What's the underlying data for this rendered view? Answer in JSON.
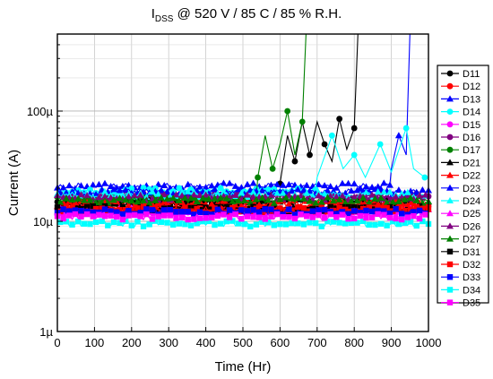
{
  "chart_data": {
    "type": "line",
    "title": {
      "main": "I",
      "sub": "DSS",
      "rest": " @ 520 V / 85 C / 85 % R.H."
    },
    "xlabel": "Time (Hr)",
    "ylabel": "Current (A)",
    "xlim": [
      0,
      1000
    ],
    "ylim": [
      1e-06,
      0.0005
    ],
    "yscale": "log",
    "grid": true,
    "legend_position": "right",
    "x_ticks": [
      0,
      100,
      200,
      300,
      400,
      500,
      600,
      700,
      800,
      900,
      1000
    ],
    "y_ticks": [
      {
        "value": 1e-06,
        "label": "1µ"
      },
      {
        "value": 1e-05,
        "label": "10µ"
      },
      {
        "value": 0.0001,
        "label": "100µ"
      }
    ],
    "series": [
      {
        "name": "D11",
        "color": "#000000",
        "marker": "circle",
        "base": 1.5e-05,
        "excursion": [
          [
            560,
            1.6e-05
          ],
          [
            600,
            2.2e-05
          ],
          [
            620,
            6e-05
          ],
          [
            640,
            3.5e-05
          ],
          [
            660,
            8e-05
          ],
          [
            680,
            4e-05
          ],
          [
            700,
            8e-05
          ],
          [
            720,
            5e-05
          ],
          [
            740,
            3.5e-05
          ],
          [
            760,
            8.5e-05
          ],
          [
            780,
            4.5e-05
          ],
          [
            800,
            7e-05
          ],
          [
            810,
            0.0005
          ]
        ]
      },
      {
        "name": "D12",
        "color": "#ff0000",
        "marker": "circle",
        "base": 1.35e-05
      },
      {
        "name": "D13",
        "color": "#0000ff",
        "marker": "triangle-up",
        "base": 2.1e-05,
        "excursion": [
          [
            900,
            3e-05
          ],
          [
            920,
            6e-05
          ],
          [
            940,
            4e-05
          ],
          [
            950,
            0.0005
          ]
        ]
      },
      {
        "name": "D14",
        "color": "#00ffff",
        "marker": "circle",
        "base": 1.9e-05,
        "excursion": [
          [
            700,
            2.5e-05
          ],
          [
            740,
            6e-05
          ],
          [
            770,
            3e-05
          ],
          [
            800,
            4e-05
          ],
          [
            830,
            2.5e-05
          ],
          [
            870,
            5e-05
          ],
          [
            900,
            2.8e-05
          ],
          [
            940,
            7e-05
          ],
          [
            960,
            3e-05
          ],
          [
            990,
            2.5e-05
          ]
        ]
      },
      {
        "name": "D15",
        "color": "#ff00ff",
        "marker": "circle",
        "base": 1.2e-05
      },
      {
        "name": "D16",
        "color": "#800080",
        "marker": "circle",
        "base": 1.7e-05
      },
      {
        "name": "D17",
        "color": "#008000",
        "marker": "circle",
        "base": 1.6e-05,
        "excursion": [
          [
            540,
            2.5e-05
          ],
          [
            560,
            6e-05
          ],
          [
            580,
            3e-05
          ],
          [
            600,
            5e-05
          ],
          [
            620,
            0.0001
          ],
          [
            640,
            4e-05
          ],
          [
            660,
            8e-05
          ],
          [
            670,
            0.0005
          ]
        ]
      },
      {
        "name": "D21",
        "color": "#000000",
        "marker": "triangle-up",
        "base": 1.5e-05
      },
      {
        "name": "D22",
        "color": "#ff0000",
        "marker": "triangle-up",
        "base": 1.45e-05
      },
      {
        "name": "D23",
        "color": "#0000ff",
        "marker": "triangle-up",
        "base": 1.85e-05
      },
      {
        "name": "D24",
        "color": "#00ffff",
        "marker": "triangle-up",
        "base": 1.75e-05
      },
      {
        "name": "D25",
        "color": "#ff00ff",
        "marker": "triangle-up",
        "base": 1.25e-05
      },
      {
        "name": "D26",
        "color": "#800080",
        "marker": "triangle-up",
        "base": 1.65e-05
      },
      {
        "name": "D27",
        "color": "#008000",
        "marker": "triangle-up",
        "base": 1.55e-05
      },
      {
        "name": "D31",
        "color": "#000000",
        "marker": "square",
        "base": 1.3e-05
      },
      {
        "name": "D32",
        "color": "#ff0000",
        "marker": "square",
        "base": 1.28e-05
      },
      {
        "name": "D33",
        "color": "#0000ff",
        "marker": "square",
        "base": 1.22e-05
      },
      {
        "name": "D34",
        "color": "#00ffff",
        "marker": "square",
        "base": 9.5e-06
      },
      {
        "name": "D35",
        "color": "#ff00ff",
        "marker": "square",
        "base": 1.1e-05
      }
    ]
  }
}
